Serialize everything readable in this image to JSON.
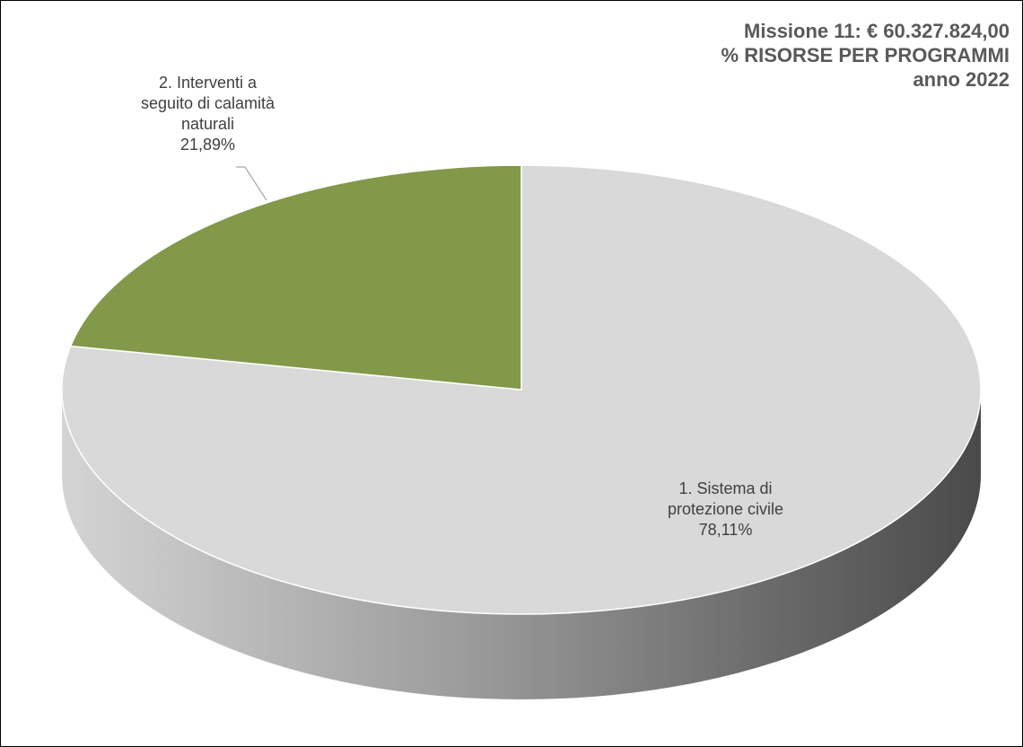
{
  "chart_data": {
    "type": "pie",
    "style": "3d",
    "title": [
      "Missione 11: € 60.327.824,00",
      "% RISORSE PER PROGRAMMI",
      "anno 2022"
    ],
    "slices": [
      {
        "label_lines": [
          "1.   Sistema di",
          "protezione civile"
        ],
        "value": 78.11,
        "value_label": "78,11%",
        "color": "#d9d9d9"
      },
      {
        "label_lines": [
          "2.  Interventi a",
          "seguito di calamità",
          "naturali"
        ],
        "value": 21.89,
        "value_label": "21,89%",
        "color": "#82994a"
      }
    ],
    "legend": "none"
  }
}
